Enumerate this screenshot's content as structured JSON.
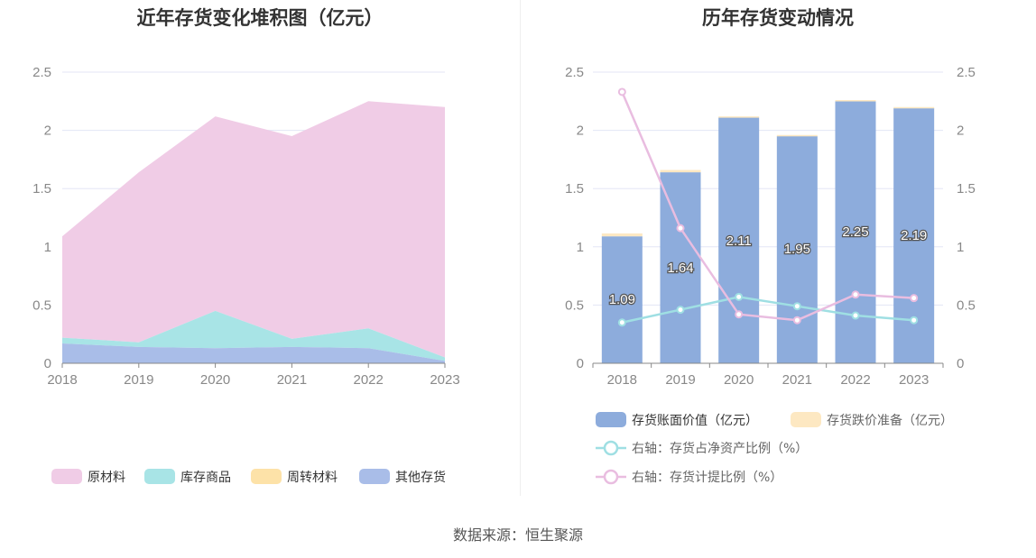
{
  "source_text": "数据来源：恒生聚源",
  "colors": {
    "raw_material": "#f0cce6",
    "inventory_goods": "#a8e4e6",
    "turnover_material": "#fde2a8",
    "other_inventory": "#a9bde8",
    "book_value_bar": "#8dacdc",
    "impairment_bar": "#fde8c2",
    "net_asset_ratio_line": "#9fdfe3",
    "provision_ratio_line": "#e9bde0"
  },
  "chart_data": [
    {
      "type": "area",
      "title": "近年存货变化堆积图（亿元）",
      "x": [
        "2018",
        "2019",
        "2020",
        "2021",
        "2022",
        "2023"
      ],
      "ylim": [
        0,
        2.5
      ],
      "yticks": [
        "0",
        "0.5",
        "1",
        "1.5",
        "2",
        "2.5"
      ],
      "stacked": true,
      "grid": true,
      "legend_position": "bottom",
      "series": [
        {
          "name": "其他存货",
          "values": [
            0.17,
            0.14,
            0.13,
            0.14,
            0.13,
            0.02
          ]
        },
        {
          "name": "库存商品",
          "values": [
            0.05,
            0.04,
            0.32,
            0.07,
            0.17,
            0.03
          ]
        },
        {
          "name": "周转材料",
          "values": [
            0.0,
            0.0,
            0.0,
            0.0,
            0.0,
            0.0
          ]
        },
        {
          "name": "原材料",
          "values": [
            0.87,
            1.46,
            1.67,
            1.74,
            1.95,
            2.15
          ]
        }
      ],
      "legend_order": [
        "原材料",
        "库存商品",
        "周转材料",
        "其他存货"
      ]
    },
    {
      "type": "bar",
      "title": "历年存货变动情况",
      "categories": [
        "2018",
        "2019",
        "2020",
        "2021",
        "2022",
        "2023"
      ],
      "ylim": [
        0,
        2.5
      ],
      "yticks": [
        "0",
        "0.5",
        "1",
        "1.5",
        "2",
        "2.5"
      ],
      "y2lim": [
        0,
        2.5
      ],
      "y2ticks": [
        "0",
        "0.5",
        "1",
        "1.5",
        "2",
        "2.5"
      ],
      "stacked": true,
      "grid": true,
      "legend_position": "bottom",
      "series": [
        {
          "name": "存货账面价值（亿元）",
          "type": "bar",
          "values": [
            1.09,
            1.64,
            2.11,
            1.95,
            2.25,
            2.19
          ],
          "labels": [
            "1.09",
            "1.64",
            "2.11",
            "1.95",
            "2.25",
            "2.19"
          ]
        },
        {
          "name": "存货跌价准备（亿元）",
          "type": "bar",
          "values": [
            0.025,
            0.02,
            0.01,
            0.01,
            0.01,
            0.01
          ]
        },
        {
          "name": "右轴：存货占净资产比例（%）",
          "type": "line",
          "axis": "right",
          "values": [
            0.35,
            0.46,
            0.57,
            0.49,
            0.41,
            0.37
          ]
        },
        {
          "name": "右轴：存货计提比例（%）",
          "type": "line",
          "axis": "right",
          "values": [
            2.33,
            1.16,
            0.42,
            0.37,
            0.59,
            0.56
          ]
        }
      ]
    }
  ]
}
